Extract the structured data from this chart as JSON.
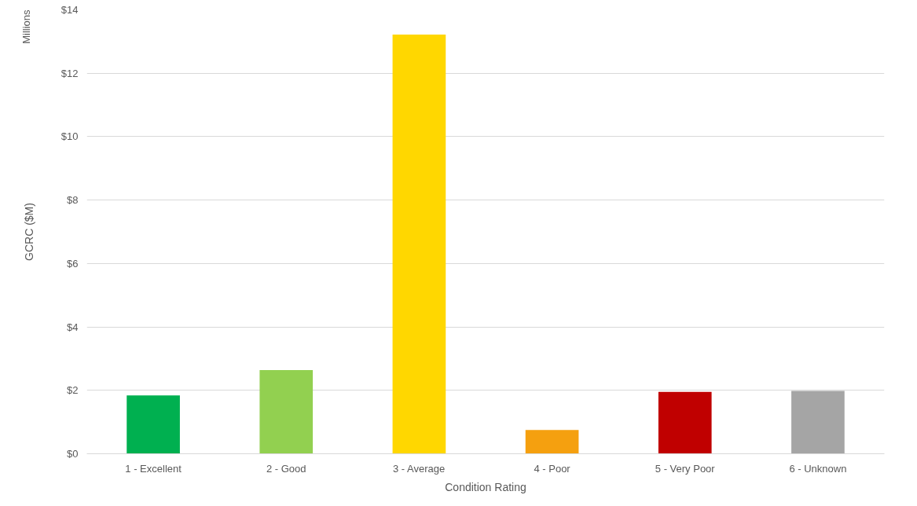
{
  "chart_data": {
    "type": "bar",
    "xlabel": "Condition Rating",
    "ylabel": "GCRC ($M)",
    "annotations": [
      "Millions"
    ],
    "categories": [
      "1 - Excellent",
      "2 - Good",
      "3 - Average",
      "4 - Poor",
      "5 - Very Poor",
      "6 - Unknown"
    ],
    "values": [
      1.84,
      2.64,
      13.22,
      0.75,
      1.95,
      1.98
    ],
    "colors": [
      "#00b050",
      "#92d050",
      "#ffd700",
      "#f5a00f",
      "#c00000",
      "#a5a5a5"
    ],
    "ylim": [
      0,
      14
    ],
    "yticks": [
      {
        "value": 0,
        "label": "$0"
      },
      {
        "value": 2,
        "label": "$2"
      },
      {
        "value": 4,
        "label": "$4"
      },
      {
        "value": 6,
        "label": "$6"
      },
      {
        "value": 8,
        "label": "$8"
      },
      {
        "value": 10,
        "label": "$10"
      },
      {
        "value": 12,
        "label": "$12"
      },
      {
        "value": 14,
        "label": "$14"
      }
    ],
    "grid": "y"
  }
}
